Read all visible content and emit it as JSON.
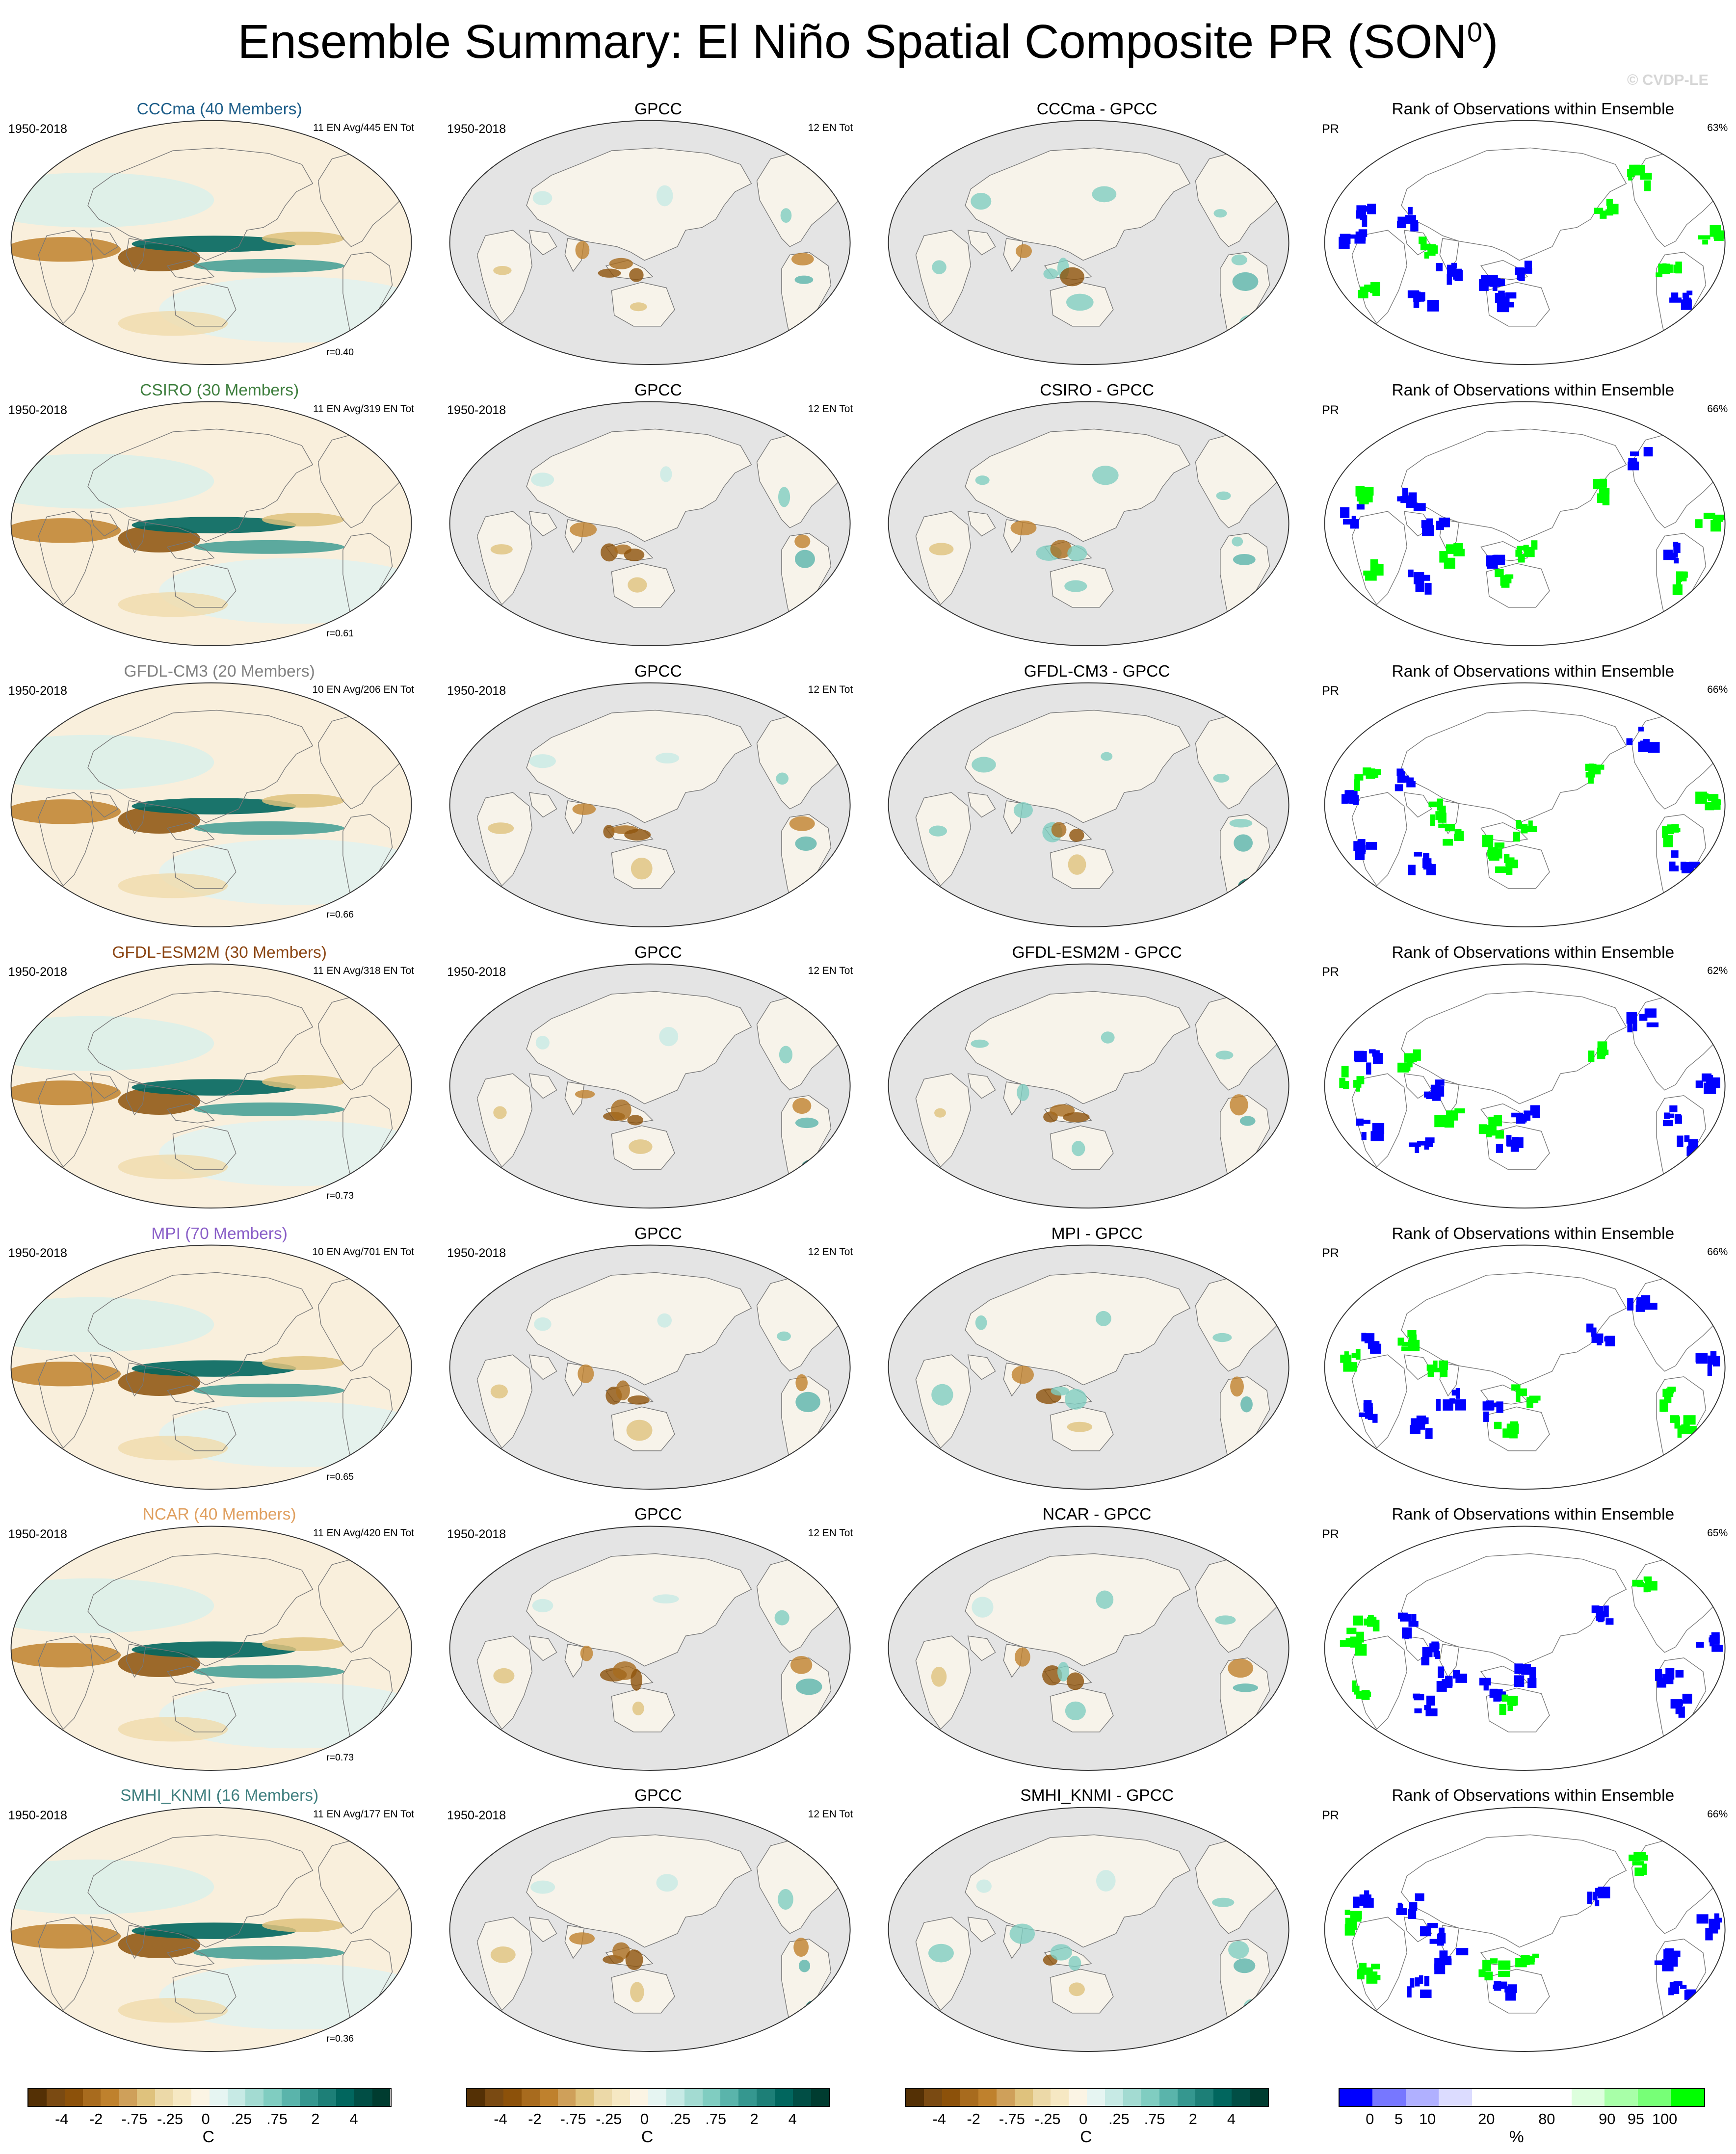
{
  "title": {
    "main": "Ensemble Summary: El Niño Spatial Composite PR (SON",
    "sup": "0",
    "close": ")"
  },
  "watermark": "© CVDP-LE",
  "rows": [
    {
      "model": "CCCma (40 Members)",
      "model_color": "#1f5f8a",
      "period": "1950-2018",
      "ens_stats": "11 EN Avg/445 EN Tot",
      "r": "r=0.40",
      "diff_title": "CCCma - GPCC",
      "rank_pct": "63%"
    },
    {
      "model": "CSIRO (30 Members)",
      "model_color": "#3f7f3f",
      "period": "1950-2018",
      "ens_stats": "11 EN Avg/319 EN Tot",
      "r": "r=0.61",
      "diff_title": "CSIRO - GPCC",
      "rank_pct": "66%"
    },
    {
      "model": "GFDL-CM3 (20 Members)",
      "model_color": "#808080",
      "period": "1950-2018",
      "ens_stats": "10 EN Avg/206 EN Tot",
      "r": "r=0.66",
      "diff_title": "GFDL-CM3 - GPCC",
      "rank_pct": "66%"
    },
    {
      "model": "GFDL-ESM2M (30 Members)",
      "model_color": "#8b4513",
      "period": "1950-2018",
      "ens_stats": "11 EN Avg/318 EN Tot",
      "r": "r=0.73",
      "diff_title": "GFDL-ESM2M - GPCC",
      "rank_pct": "62%"
    },
    {
      "model": "MPI (70 Members)",
      "model_color": "#8a5fc8",
      "period": "1950-2018",
      "ens_stats": "10 EN Avg/701 EN Tot",
      "r": "r=0.65",
      "diff_title": "MPI - GPCC",
      "rank_pct": "66%"
    },
    {
      "model": "NCAR (40 Members)",
      "model_color": "#e0a060",
      "period": "1950-2018",
      "ens_stats": "11 EN Avg/420 EN Tot",
      "r": "r=0.73",
      "diff_title": "NCAR - GPCC",
      "rank_pct": "65%"
    },
    {
      "model": "SMHI_KNMI (16 Members)",
      "model_color": "#3f7f7f",
      "period": "1950-2018",
      "ens_stats": "11 EN Avg/177 EN Tot",
      "r": "r=0.36",
      "diff_title": "SMHI_KNMI - GPCC",
      "rank_pct": "66%"
    }
  ],
  "obs": {
    "title": "GPCC",
    "period": "1950-2018",
    "stats": "12 EN Tot"
  },
  "rank": {
    "title": "Rank of Observations within Ensemble",
    "var": "PR"
  },
  "colorbars": {
    "composite": {
      "ticks": [
        "-4",
        "-2",
        "-.75",
        "-.25",
        "0",
        ".25",
        ".75",
        "2",
        "4"
      ],
      "unit": "C",
      "colors": [
        "#543005",
        "#7a4a12",
        "#8c510a",
        "#a86b1e",
        "#bf812d",
        "#cfa05a",
        "#dfc27d",
        "#ecd9a8",
        "#f6e8c3",
        "#fbf4e4",
        "#e6f5f2",
        "#c7eae5",
        "#a3dbd2",
        "#80cdc1",
        "#5ab4ab",
        "#35978f",
        "#1d7f77",
        "#01665e",
        "#014e45",
        "#003c30"
      ]
    },
    "rank": {
      "ticks": [
        "0",
        "5",
        "10",
        "20",
        "80",
        "90",
        "95",
        "100"
      ],
      "unit": "%",
      "colors": [
        "#0000ff",
        "#7777ff",
        "#b0b0ff",
        "#dcdcff",
        "#ffffff",
        "#ffffff",
        "#ffffff",
        "#ddffdd",
        "#a8ffa8",
        "#77ff77",
        "#00ff00"
      ]
    }
  },
  "map_colors": {
    "land_gray": "#e4e4e4",
    "brown": "#a06a1c",
    "teal": "#117a70",
    "rank_low": "#0000ff",
    "rank_high": "#00ff00"
  }
}
